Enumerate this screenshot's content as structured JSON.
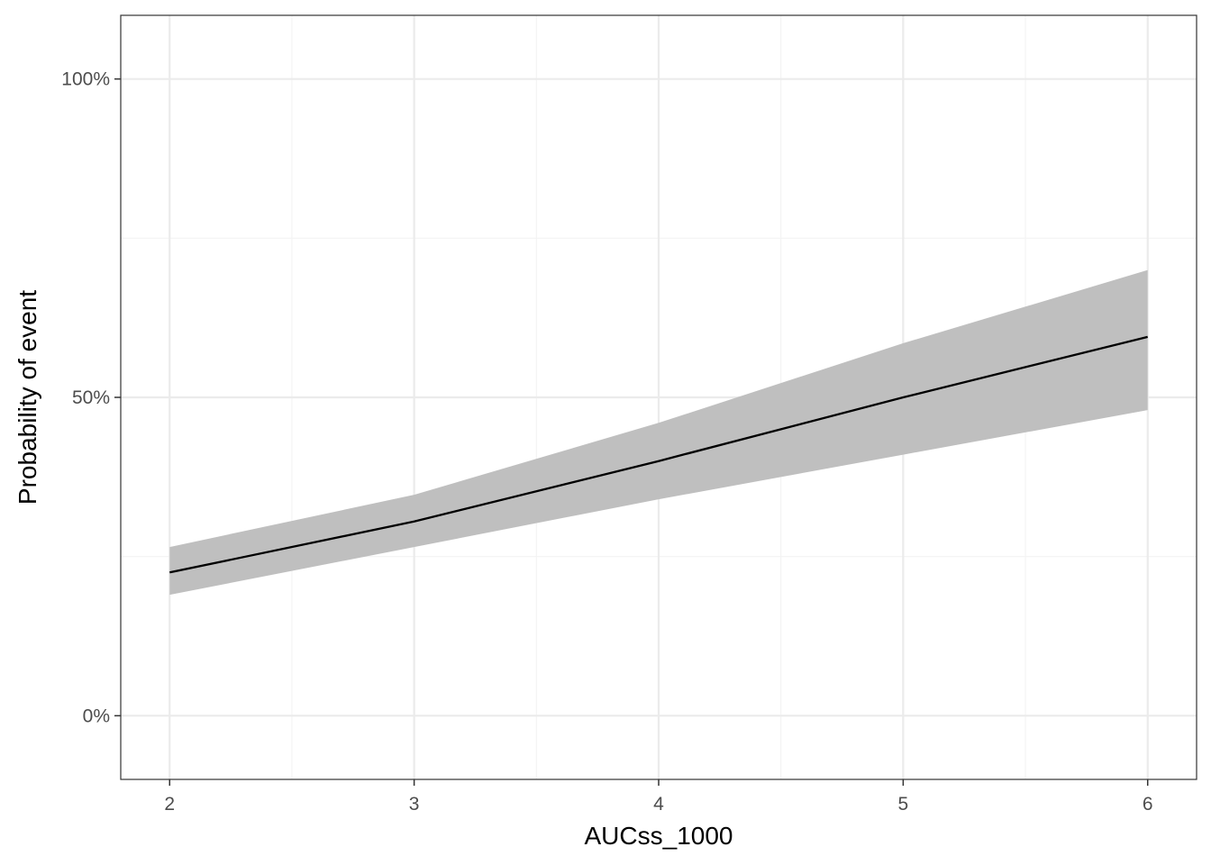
{
  "chart_data": {
    "type": "line",
    "xlabel": "AUCss_1000",
    "ylabel": "Probability of event",
    "x_ticks": [
      "2",
      "3",
      "4",
      "5",
      "6"
    ],
    "y_ticks": [
      "0%",
      "50%",
      "100%"
    ],
    "xlim": [
      1.8,
      6.2
    ],
    "ylim": [
      -0.1,
      1.1
    ],
    "grid": true,
    "series": [
      {
        "x": [
          2,
          3,
          4,
          5,
          6
        ],
        "y": [
          0.225,
          0.305,
          0.4,
          0.5,
          0.595
        ],
        "lower": [
          0.19,
          0.265,
          0.34,
          0.41,
          0.48
        ],
        "upper": [
          0.265,
          0.347,
          0.46,
          0.585,
          0.7
        ]
      }
    ],
    "colors": {
      "line": "#000000",
      "ribbon": "#bfbfbf",
      "grid_major": "#ebebeb",
      "grid_minor": "#f3f3f3",
      "panel_border": "#333333"
    }
  }
}
